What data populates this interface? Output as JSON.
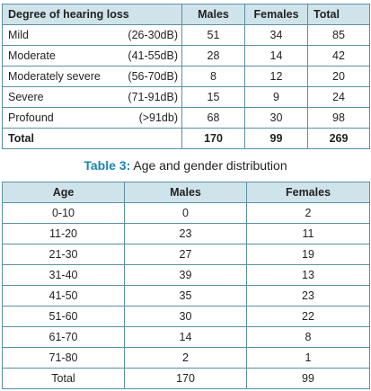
{
  "table2": {
    "headers": [
      "Degree of hearing loss",
      "Males",
      "Females",
      "Total"
    ],
    "rows": [
      {
        "degree": "Mild",
        "range": "(26-30dB)",
        "males": "51",
        "females": "34",
        "total": "85"
      },
      {
        "degree": "Moderate",
        "range": "(41-55dB)",
        "males": "28",
        "females": "14",
        "total": "42"
      },
      {
        "degree": "Moderately severe",
        "range": "(56-70dB)",
        "males": "8",
        "females": "12",
        "total": "20"
      },
      {
        "degree": "Severe",
        "range": "(71-91dB)",
        "males": "15",
        "females": "9",
        "total": "24"
      },
      {
        "degree": "Profound",
        "range": "(>91db)",
        "males": "68",
        "females": "30",
        "total": "98"
      }
    ],
    "total_row": {
      "label": "Total",
      "males": "170",
      "females": "99",
      "total": "269"
    }
  },
  "table3": {
    "caption_label": "Table 3:",
    "caption_text": " Age and gender distribution",
    "headers": [
      "Age",
      "Males",
      "Females"
    ],
    "rows": [
      {
        "age": "0-10",
        "males": "0",
        "females": "2"
      },
      {
        "age": "11-20",
        "males": "23",
        "females": "11"
      },
      {
        "age": "21-30",
        "males": "27",
        "females": "19"
      },
      {
        "age": "31-40",
        "males": "39",
        "females": "13"
      },
      {
        "age": "41-50",
        "males": "35",
        "females": "23"
      },
      {
        "age": "51-60",
        "males": "30",
        "females": "22"
      },
      {
        "age": "61-70",
        "males": "14",
        "females": "8"
      },
      {
        "age": "71-80",
        "males": "2",
        "females": "1"
      },
      {
        "age": "Total",
        "males": "170",
        "females": "99"
      }
    ]
  },
  "colors": {
    "header_bg": "#cfe4ea",
    "border": "#5a8fa3",
    "caption_accent": "#1a86b0"
  }
}
